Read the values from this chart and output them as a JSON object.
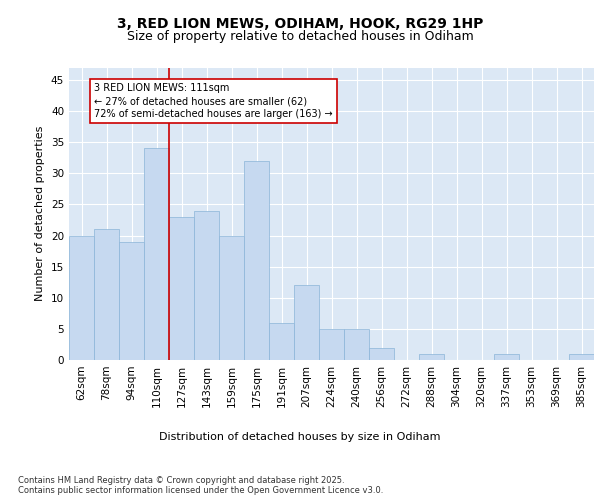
{
  "title1": "3, RED LION MEWS, ODIHAM, HOOK, RG29 1HP",
  "title2": "Size of property relative to detached houses in Odiham",
  "xlabel": "Distribution of detached houses by size in Odiham",
  "ylabel": "Number of detached properties",
  "categories": [
    "62sqm",
    "78sqm",
    "94sqm",
    "110sqm",
    "127sqm",
    "143sqm",
    "159sqm",
    "175sqm",
    "191sqm",
    "207sqm",
    "224sqm",
    "240sqm",
    "256sqm",
    "272sqm",
    "288sqm",
    "304sqm",
    "320sqm",
    "337sqm",
    "353sqm",
    "369sqm",
    "385sqm"
  ],
  "values": [
    20,
    21,
    19,
    34,
    23,
    24,
    20,
    32,
    6,
    12,
    5,
    5,
    2,
    0,
    1,
    0,
    0,
    1,
    0,
    0,
    1
  ],
  "bar_color": "#c6d9f0",
  "bar_edge_color": "#8ab4d8",
  "background_color": "#dce8f5",
  "grid_color": "#ffffff",
  "fig_bg_color": "#ffffff",
  "vline_x": 3.5,
  "vline_color": "#cc0000",
  "annotation_text": "3 RED LION MEWS: 111sqm\n← 27% of detached houses are smaller (62)\n72% of semi-detached houses are larger (163) →",
  "annotation_box_color": "#ffffff",
  "annotation_box_edge_color": "#cc0000",
  "footer_text": "Contains HM Land Registry data © Crown copyright and database right 2025.\nContains public sector information licensed under the Open Government Licence v3.0.",
  "ylim": [
    0,
    47
  ],
  "yticks": [
    0,
    5,
    10,
    15,
    20,
    25,
    30,
    35,
    40,
    45
  ],
  "title1_fontsize": 10,
  "title2_fontsize": 9,
  "xlabel_fontsize": 8,
  "ylabel_fontsize": 8,
  "tick_fontsize": 7.5,
  "annot_fontsize": 7,
  "footer_fontsize": 6
}
